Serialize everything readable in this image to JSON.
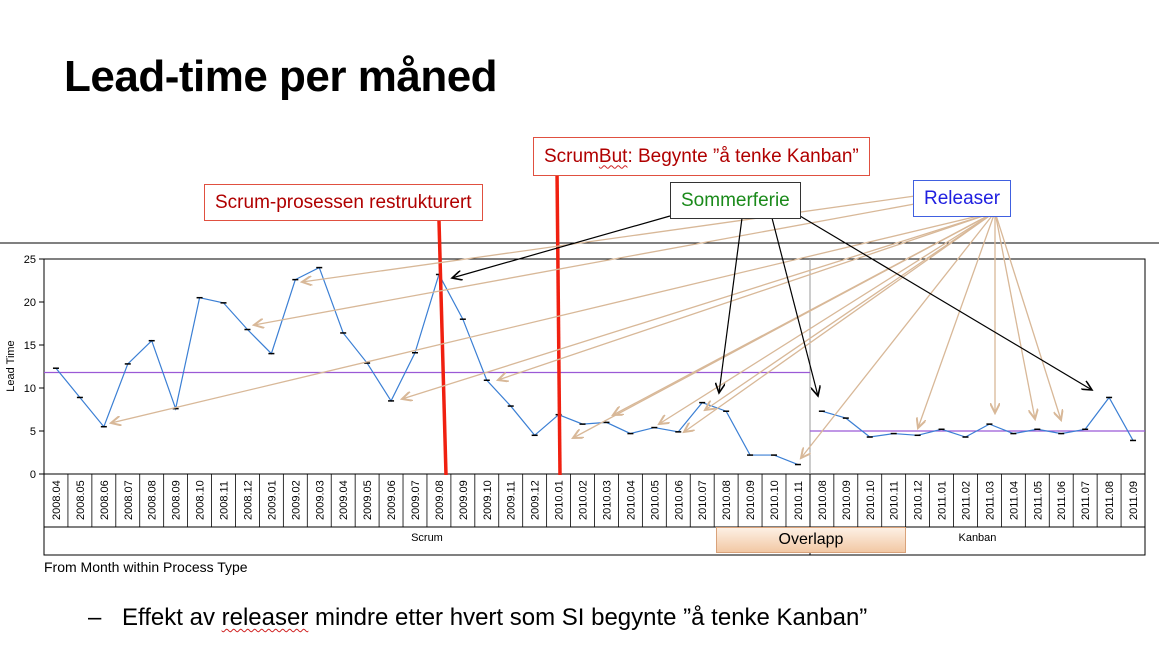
{
  "slide": {
    "title": "Lead-time per måned",
    "bullet_dash": "–",
    "bullet_pre": "Effekt av ",
    "bullet_squiggle": "releaser",
    "bullet_post": " mindre etter hvert som SI begynte ”å tenke Kanban”"
  },
  "annotations": {
    "scrum_restructured": "Scrum-prosessen restrukturert",
    "scrumbut_pre": "Scrum",
    "scrumbut_squiggle": "But",
    "scrumbut_post": ": Begynte ”å tenke Kanban”",
    "sommerferie": "Sommerferie",
    "releaser": "Releaser",
    "overlapp": "Overlapp"
  },
  "colors": {
    "series_line": "#3b7fd4",
    "average_line": "#9b59d6",
    "red_marker": "#f02010",
    "release_arrow": "#d8b898",
    "summer_arrow": "#000000"
  },
  "chart_data": {
    "type": "line",
    "ylabel": "Lead Time",
    "xlabel": "From Month within Process Type",
    "ylim": [
      0,
      25
    ],
    "yticks": [
      0,
      5,
      10,
      15,
      20,
      25
    ],
    "groups": [
      {
        "name": "Scrum",
        "average": 11.8,
        "x": [
          "2008.04",
          "2008.05",
          "2008.06",
          "2008.07",
          "2008.08",
          "2008.09",
          "2008.10",
          "2008.11",
          "2008.12",
          "2009.01",
          "2009.02",
          "2009.03",
          "2009.04",
          "2009.05",
          "2009.06",
          "2009.07",
          "2009.08",
          "2009.09",
          "2009.10",
          "2009.11",
          "2009.12",
          "2010.01",
          "2010.02",
          "2010.03",
          "2010.04",
          "2010.05",
          "2010.06",
          "2010.07",
          "2010.08",
          "2010.09",
          "2010.10",
          "2010.11"
        ],
        "values": [
          12.3,
          8.9,
          5.5,
          12.8,
          15.5,
          7.6,
          20.5,
          19.9,
          16.8,
          14.0,
          22.6,
          24.0,
          16.4,
          12.9,
          8.5,
          14.1,
          23.2,
          18.0,
          10.9,
          7.9,
          4.5,
          6.9,
          5.8,
          6.0,
          4.7,
          5.4,
          4.9,
          8.3,
          7.3,
          2.2,
          2.2,
          1.1
        ]
      },
      {
        "name": "Kanban",
        "average": 5.0,
        "x": [
          "2010.08",
          "2010.09",
          "2010.10",
          "2010.11",
          "2010.12",
          "2011.01",
          "2011.02",
          "2011.03",
          "2011.04",
          "2011.05",
          "2011.06",
          "2011.07",
          "2011.08",
          "2011.09"
        ],
        "values": [
          7.3,
          6.5,
          4.3,
          4.7,
          4.5,
          5.2,
          4.3,
          5.8,
          4.7,
          5.2,
          4.7,
          5.2,
          8.9,
          3.9
        ]
      }
    ],
    "grid": false,
    "legend": "none"
  }
}
